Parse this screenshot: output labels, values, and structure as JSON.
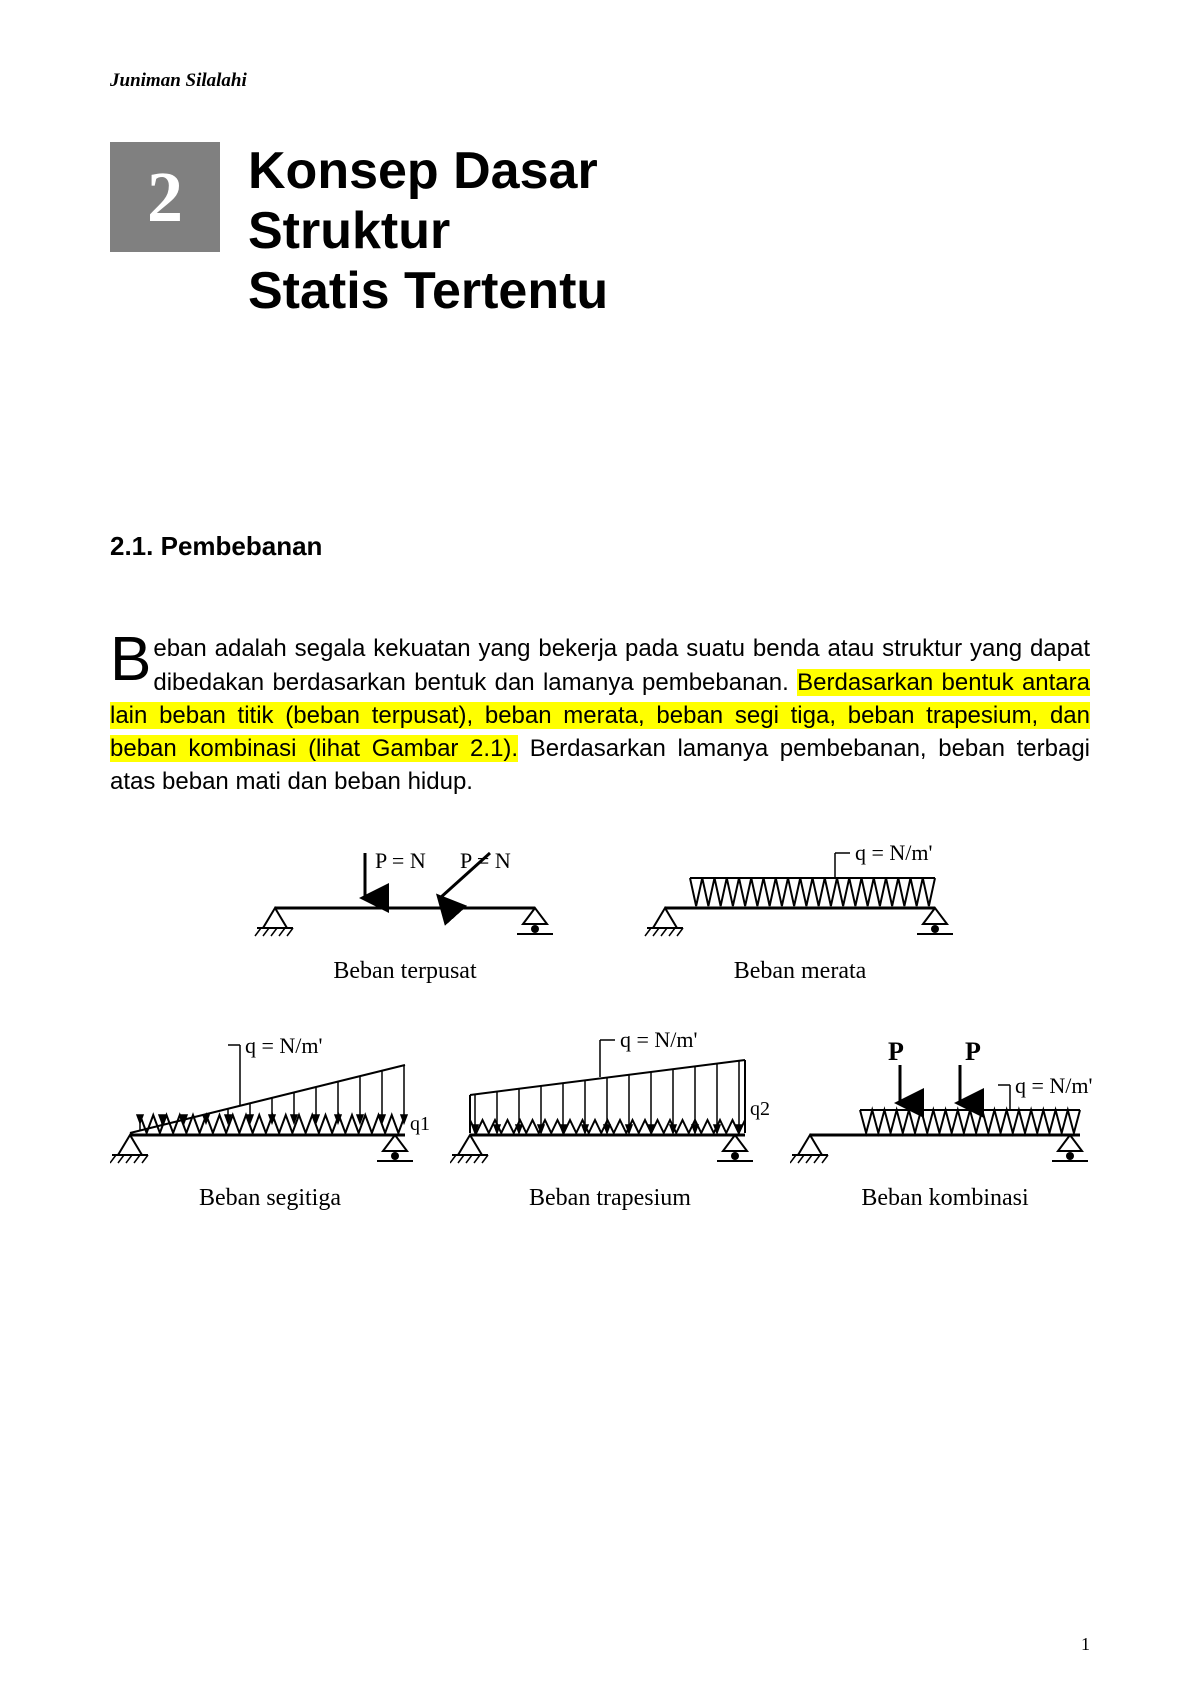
{
  "author": "Juniman Silalahi",
  "chapter": {
    "number": "2",
    "title_line1": "Konsep Dasar",
    "title_line2": "Struktur",
    "title_line3": "Statis Tertentu"
  },
  "section": {
    "number": "2.1.",
    "title": "Pembebanan"
  },
  "paragraph": {
    "dropcap": "B",
    "text_before_highlight": "eban adalah segala kekuatan yang bekerja pada suatu benda atau struktur yang dapat dibedakan  berdasarkan bentuk dan lamanya pembebanan. ",
    "highlight": "Berdasarkan bentuk antara lain beban titik (beban terpusat), beban merata, beban segi tiga, beban trapesium, dan beban kombinasi (lihat Gambar 2.1).",
    "text_after_highlight": " Berdasarkan lamanya pembebanan, beban terbagi atas beban mati dan beban hidup."
  },
  "figures": {
    "terpusat": {
      "label_p1": "P = N",
      "label_p2": "P = N",
      "caption": "Beban terpusat"
    },
    "merata": {
      "label_q": "q = N/m'",
      "caption": "Beban merata"
    },
    "segitiga": {
      "label_q": "q = N/m'",
      "label_q1": "q1",
      "caption": "Beban segitiga"
    },
    "trapesium": {
      "label_q": "q = N/m'",
      "label_q2": "q2",
      "caption": "Beban trapesium"
    },
    "kombinasi": {
      "label_p1": "P",
      "label_p2": "P",
      "label_q": "q = N/m'",
      "caption": "Beban kombinasi"
    }
  },
  "page_number": "1",
  "colors": {
    "highlight": "#ffff00",
    "chapter_bg": "#808080",
    "text": "#000000",
    "bg": "#ffffff"
  }
}
